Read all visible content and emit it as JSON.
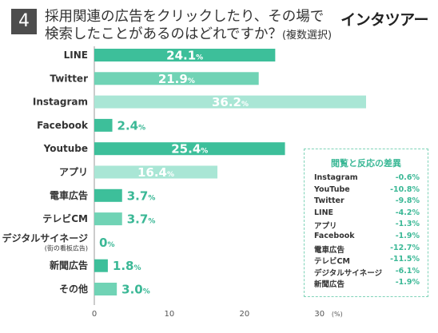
{
  "header": {
    "number": "4",
    "title_line1": "採用関連の広告をクリックしたり、その場で",
    "title_line2": "検索したことがあるのはどれですか？",
    "title_note": "(複数選択)",
    "brand": "インタツアー"
  },
  "colors": {
    "bar_dark": "#3dbf9a",
    "bar_mid": "#70d3b5",
    "bar_light": "#a9e6d5",
    "value_out": "#3bb896"
  },
  "chart_data": {
    "type": "bar",
    "orientation": "horizontal",
    "categories": [
      "LINE",
      "Twitter",
      "Instagram",
      "Facebook",
      "Youtube",
      "アプリ",
      "電車広告",
      "テレビCM",
      "デジタルサイネージ",
      "新聞広告",
      "その他"
    ],
    "category_sublabels": [
      "",
      "",
      "",
      "",
      "",
      "",
      "",
      "",
      "(街の看板広告)",
      "",
      ""
    ],
    "values": [
      24.1,
      21.9,
      36.2,
      2.4,
      25.4,
      16.4,
      3.7,
      3.7,
      0,
      1.8,
      3.0
    ],
    "value_labels": [
      "24.1",
      "21.9",
      "36.2",
      "2.4",
      "25.4",
      "16.4",
      "3.7",
      "3.7",
      "0",
      "1.8",
      "3.0"
    ],
    "unit": "%",
    "bar_tones": [
      "dark",
      "mid",
      "light",
      "dark",
      "dark",
      "light",
      "dark",
      "mid",
      "dark",
      "dark",
      "mid"
    ],
    "xlim": [
      0,
      36.2
    ],
    "xticks": [
      "0",
      "10",
      "20",
      "30"
    ],
    "x_unit_label": "(%)",
    "grid": false
  },
  "diff_box": {
    "title": "閲覧と反応の差異",
    "rows": [
      {
        "label": "Instagram",
        "value": "-0.6",
        "unit": "%"
      },
      {
        "label": "YouTube",
        "value": "-10.8",
        "unit": "%"
      },
      {
        "label": "Twitter",
        "value": "-9.8",
        "unit": "%"
      },
      {
        "label": "LINE",
        "value": "-4.2",
        "unit": "%"
      },
      {
        "label": "アプリ",
        "value": "-1.3",
        "unit": "%"
      },
      {
        "label": "Facebook",
        "value": "-1.9",
        "unit": "%"
      },
      {
        "label": "電車広告",
        "value": "-12.7",
        "unit": "%"
      },
      {
        "label": "テレビCM",
        "value": "-11.5",
        "unit": "%"
      },
      {
        "label": "デジタルサイネージ",
        "value": "-6.1",
        "unit": "%"
      },
      {
        "label": "新聞広告",
        "value": "-1.9",
        "unit": "%"
      }
    ]
  }
}
